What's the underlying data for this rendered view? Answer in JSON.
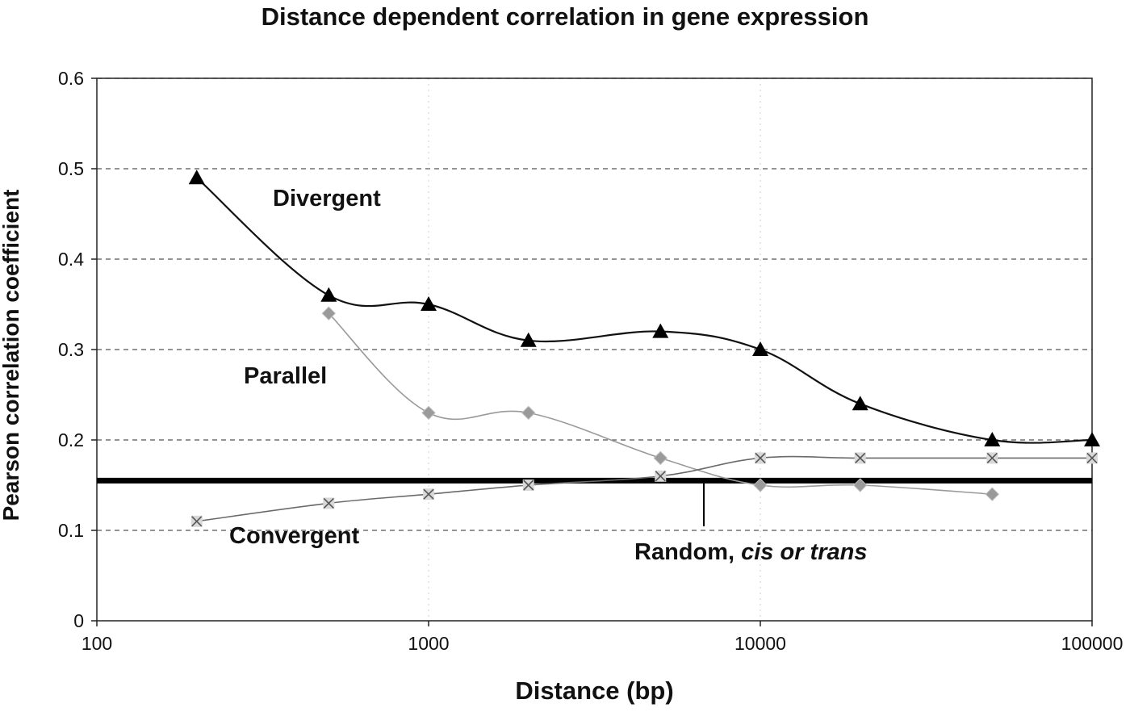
{
  "chart_data": {
    "type": "line",
    "title": "Distance dependent correlation in gene expression",
    "xlabel": "Distance (bp)",
    "ylabel": "Pearson correlation coefficient",
    "xscale": "log",
    "xlim": [
      100,
      100000
    ],
    "ylim": [
      0,
      0.6
    ],
    "x_ticks": [
      "100",
      "1000",
      "10000",
      "100000"
    ],
    "y_ticks": [
      "0",
      "0.1",
      "0.2",
      "0.3",
      "0.4",
      "0.5",
      "0.6"
    ],
    "grid": "horizontal dashed",
    "legend": "none (series labeled by in-plot annotations)",
    "series": [
      {
        "name": "Divergent",
        "marker": "triangle",
        "color": "#111111",
        "x": [
          200,
          500,
          1000,
          2000,
          5000,
          10000,
          20000,
          50000,
          100000
        ],
        "y": [
          0.49,
          0.36,
          0.35,
          0.31,
          0.32,
          0.3,
          0.24,
          0.2,
          0.2
        ]
      },
      {
        "name": "Parallel",
        "marker": "diamond",
        "color": "#9a9a9a",
        "x": [
          500,
          1000,
          2000,
          5000,
          10000,
          20000,
          50000
        ],
        "y": [
          0.34,
          0.23,
          0.23,
          0.18,
          0.15,
          0.15,
          0.14
        ]
      },
      {
        "name": "Convergent",
        "marker": "x",
        "color": "#6a6a6a",
        "x": [
          200,
          500,
          1000,
          2000,
          5000,
          10000,
          20000,
          50000,
          100000
        ],
        "y": [
          0.11,
          0.13,
          0.14,
          0.15,
          0.16,
          0.18,
          0.18,
          0.18,
          0.18
        ]
      }
    ],
    "reference_line": {
      "y": 0.155
    },
    "annotations": {
      "divergent": "Divergent",
      "parallel": "Parallel",
      "convergent": "Convergent",
      "random_prefix": "Random, ",
      "random_italic": "cis or trans"
    }
  }
}
